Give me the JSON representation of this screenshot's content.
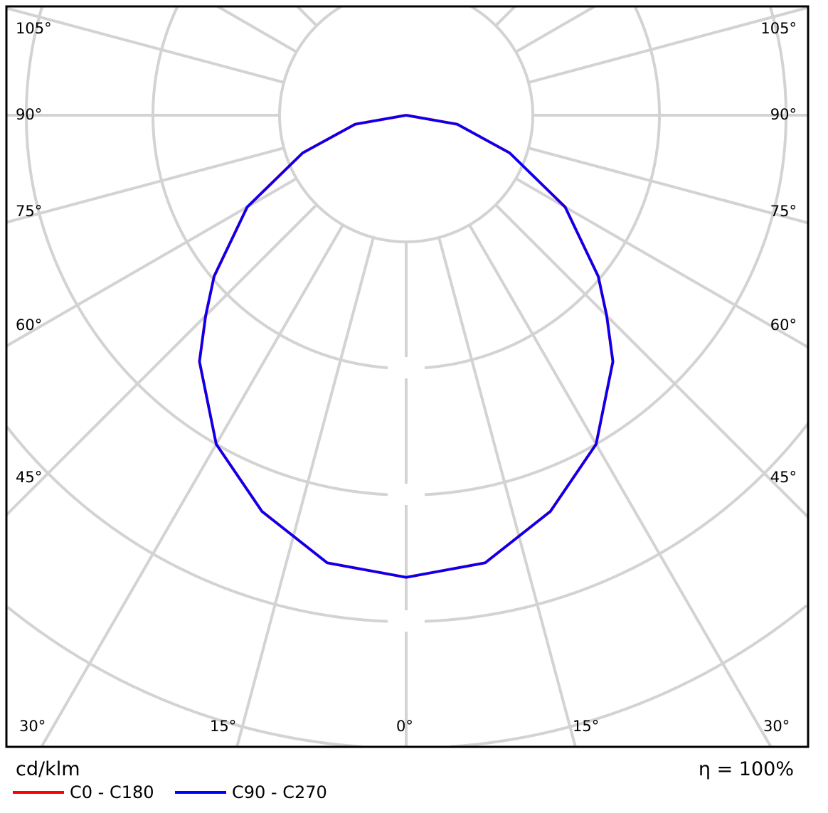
{
  "chart_data": {
    "type": "polar-line",
    "unit_label": "cd/klm",
    "efficiency_label": "η = 100%",
    "angle_labels": {
      "left": [
        "105°",
        "90°",
        "75°",
        "60°",
        "45°"
      ],
      "right": [
        "105°",
        "90°",
        "75°",
        "60°",
        "45°"
      ],
      "bottom": [
        "30°",
        "15°",
        "0°",
        "15°",
        "30°"
      ]
    },
    "angular_grid_step_deg": 15,
    "radial_ring_labels_visible": false,
    "grid": true,
    "legend_placement": "bottom-left",
    "angles_deg": [
      0,
      10,
      20,
      30,
      40,
      45,
      50,
      60,
      70,
      80,
      90
    ],
    "radial_units": "grid rings (ring values not legible)",
    "series": [
      {
        "name": "C0 - C180",
        "color": "#ff0000",
        "values": [
          3.65,
          3.59,
          3.33,
          3.0,
          2.54,
          2.24,
          1.98,
          1.45,
          0.87,
          0.41,
          0
        ]
      },
      {
        "name": "C90 - C270",
        "color": "#0000ff",
        "values": [
          3.65,
          3.59,
          3.33,
          3.0,
          2.54,
          2.24,
          1.98,
          1.45,
          0.87,
          0.41,
          0
        ]
      }
    ]
  }
}
